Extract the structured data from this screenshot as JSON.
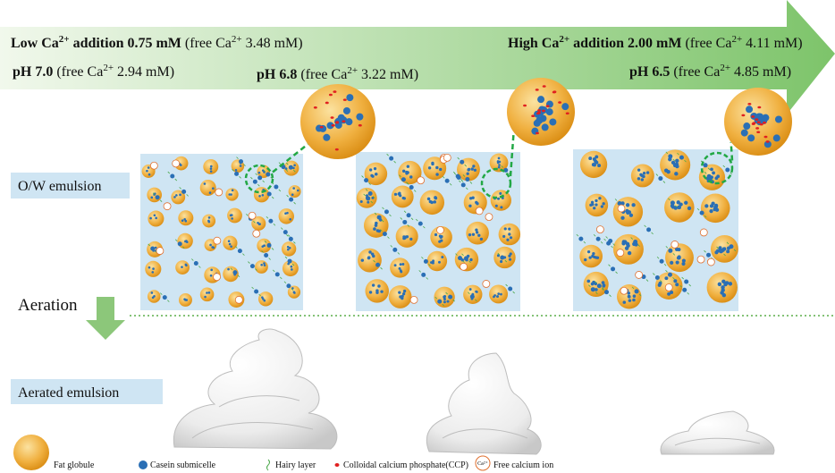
{
  "header": {
    "lines": [
      {
        "runs": [
          {
            "text": "Low Ca",
            "style": "b"
          },
          {
            "text": "2+",
            "style": "bs"
          },
          {
            "text": " addition 0.75 mM",
            "style": "b"
          },
          {
            "text": " (free Ca",
            "style": "n"
          },
          {
            "text": "2+",
            "style": "s"
          },
          {
            "text": " 3.48 mM)",
            "style": "n"
          }
        ]
      },
      {
        "runs": [
          {
            "text": "High Ca",
            "style": "b"
          },
          {
            "text": "2+",
            "style": "bs"
          },
          {
            "text": " addition 2.00 mM",
            "style": "b"
          },
          {
            "text": " (free Ca",
            "style": "n"
          },
          {
            "text": "2+",
            "style": "s"
          },
          {
            "text": " 4.11 mM)",
            "style": "n"
          }
        ]
      },
      {
        "runs": [
          {
            "text": "pH 7.0",
            "style": "b"
          },
          {
            "text": " (free Ca",
            "style": "n"
          },
          {
            "text": "2+",
            "style": "s"
          },
          {
            "text": " 2.94 mM)",
            "style": "n"
          }
        ]
      },
      {
        "runs": [
          {
            "text": "pH 6.8",
            "style": "b"
          },
          {
            "text": " (free Ca",
            "style": "n"
          },
          {
            "text": "2+",
            "style": "s"
          },
          {
            "text": " 3.22 mM)",
            "style": "n"
          }
        ]
      },
      {
        "runs": [
          {
            "text": "pH 6.5",
            "style": "b"
          },
          {
            "text": " (free Ca",
            "style": "n"
          },
          {
            "text": "2+",
            "style": "s"
          },
          {
            "text": " 4.85 mM)",
            "style": "n"
          }
        ]
      }
    ]
  },
  "labels": {
    "emulsion": "O/W emulsion",
    "aeration": "Aeration",
    "aerated": "Aerated emulsion"
  },
  "legend": {
    "fat": "Fat globule",
    "casein": "Casein submicelle",
    "hairy": "Hairy layer",
    "ccp": "Colloidal calcium phosphate(CCP)",
    "ion_symbol": "Ca²⁺",
    "ion": "Free calcium ion"
  }
}
